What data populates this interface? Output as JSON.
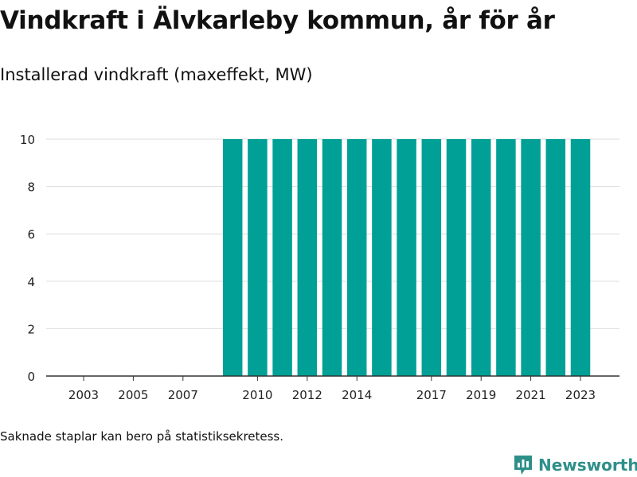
{
  "title": "Vindkraft i Älvkarleby kommun, år för år",
  "subtitle": "Installerad vindkraft (maxeffekt, MW)",
  "note": "Saknade staplar kan bero på statistiksekretess.",
  "brand": {
    "name": "Newsworthy",
    "icon": "bar-chart-logo-icon",
    "color": "#2e8f8a"
  },
  "colors": {
    "bar": "#00a096",
    "grid": "#dddddd",
    "axis": "#333333",
    "text": "#222222"
  },
  "chart_data": {
    "type": "bar",
    "title": "",
    "xlabel": "",
    "ylabel": "",
    "categories": [
      "2003",
      "2004",
      "2005",
      "2006",
      "2007",
      "2008",
      "2009",
      "2010",
      "2011",
      "2012",
      "2013",
      "2014",
      "2015",
      "2016",
      "2017",
      "2018",
      "2019",
      "2020",
      "2021",
      "2022",
      "2023"
    ],
    "values": [
      0,
      0,
      0,
      0,
      0,
      0,
      10,
      10,
      10,
      10,
      10,
      10,
      10,
      10,
      10,
      10,
      10,
      10,
      10,
      10,
      10
    ],
    "ylim": [
      0,
      10
    ],
    "yticks": [
      0,
      2,
      4,
      6,
      8,
      10
    ],
    "xtick_labels": [
      "2003",
      "2005",
      "2007",
      "2010",
      "2012",
      "2014",
      "2017",
      "2019",
      "2021",
      "2023"
    ],
    "grid": true,
    "legend": "none"
  }
}
